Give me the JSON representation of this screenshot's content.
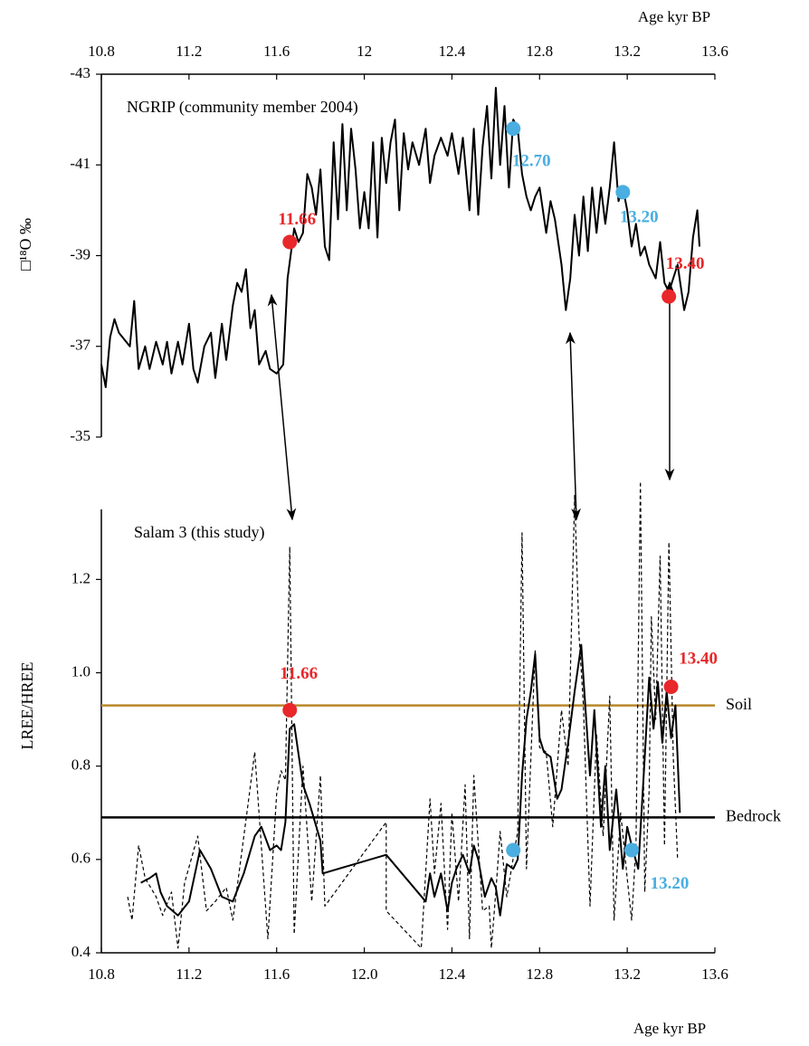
{
  "chart_data": [
    {
      "type": "line",
      "title": "NGRIP (community member 2004)",
      "xlabel": "Age kyr BP",
      "ylabel": "□¹⁸O ‰",
      "xaxis_position": "top",
      "xlim": [
        10.8,
        13.6
      ],
      "xticks": [
        10.8,
        11.2,
        11.6,
        12,
        12.4,
        12.8,
        13.2,
        13.6
      ],
      "ylim": [
        -35,
        -43
      ],
      "yticks": [
        -35,
        -37,
        -39,
        -41,
        -43
      ],
      "series": [
        {
          "color": "#000000",
          "dash": false,
          "x": [
            10.8,
            10.82,
            10.84,
            10.86,
            10.88,
            10.93,
            10.95,
            10.97,
            11.0,
            11.02,
            11.05,
            11.08,
            11.1,
            11.12,
            11.15,
            11.17,
            11.2,
            11.22,
            11.24,
            11.27,
            11.3,
            11.32,
            11.35,
            11.37,
            11.4,
            11.42,
            11.44,
            11.46,
            11.48,
            11.5,
            11.52,
            11.55,
            11.57,
            11.6,
            11.63,
            11.65,
            11.68,
            11.7,
            11.72,
            11.74,
            11.76,
            11.78,
            11.8,
            11.82,
            11.84,
            11.86,
            11.88,
            11.9,
            11.92,
            11.94,
            11.96,
            11.98,
            12.0,
            12.02,
            12.04,
            12.06,
            12.08,
            12.1,
            12.12,
            12.14,
            12.16,
            12.18,
            12.2,
            12.22,
            12.25,
            12.28,
            12.3,
            12.32,
            12.35,
            12.38,
            12.4,
            12.43,
            12.45,
            12.48,
            12.5,
            12.52,
            12.54,
            12.56,
            12.58,
            12.6,
            12.62,
            12.64,
            12.66,
            12.68,
            12.7,
            12.72,
            12.74,
            12.76,
            12.78,
            12.8,
            12.83,
            12.85,
            12.87,
            12.9,
            12.92,
            12.94,
            12.96,
            12.98,
            13.0,
            13.02,
            13.04,
            13.06,
            13.08,
            13.1,
            13.12,
            13.14,
            13.16,
            13.18,
            13.2,
            13.22,
            13.24,
            13.26,
            13.28,
            13.3,
            13.33,
            13.35,
            13.37,
            13.39,
            13.41,
            13.43,
            13.46,
            13.48,
            13.5,
            13.52,
            13.53
          ],
          "values": [
            -36.6,
            -36.1,
            -37.2,
            -37.6,
            -37.3,
            -37.0,
            -38.0,
            -36.5,
            -37.0,
            -36.5,
            -37.1,
            -36.6,
            -37.1,
            -36.4,
            -37.1,
            -36.6,
            -37.5,
            -36.5,
            -36.2,
            -37.0,
            -37.3,
            -36.3,
            -37.5,
            -36.7,
            -37.9,
            -38.4,
            -38.2,
            -38.7,
            -37.4,
            -37.8,
            -36.6,
            -36.9,
            -36.5,
            -36.4,
            -36.6,
            -38.5,
            -39.6,
            -39.3,
            -39.5,
            -40.8,
            -40.5,
            -39.9,
            -40.9,
            -39.2,
            -38.9,
            -41.5,
            -39.8,
            -41.9,
            -40.0,
            -41.8,
            -40.9,
            -39.6,
            -40.4,
            -39.6,
            -41.5,
            -39.4,
            -41.6,
            -40.6,
            -41.5,
            -42.0,
            -40.0,
            -41.7,
            -40.9,
            -41.5,
            -41.0,
            -41.8,
            -40.6,
            -41.2,
            -41.6,
            -41.2,
            -41.7,
            -40.8,
            -41.6,
            -40.0,
            -41.8,
            -39.9,
            -41.4,
            -42.3,
            -40.7,
            -42.7,
            -41.0,
            -42.3,
            -40.5,
            -42.0,
            -41.8,
            -40.8,
            -40.3,
            -40.0,
            -40.3,
            -40.5,
            -39.5,
            -40.2,
            -39.8,
            -38.8,
            -37.8,
            -38.5,
            -39.9,
            -39.0,
            -40.3,
            -39.1,
            -40.5,
            -39.5,
            -40.5,
            -39.7,
            -40.5,
            -41.5,
            -40.2,
            -40.5,
            -40.0,
            -39.2,
            -39.7,
            -39.0,
            -39.2,
            -38.8,
            -38.5,
            -39.3,
            -38.4,
            -38.2,
            -38.5,
            -38.8,
            -37.8,
            -38.2,
            -39.4,
            -40.0,
            -39.2
          ]
        }
      ],
      "annotations": [
        {
          "label": "11.66",
          "x": 11.66,
          "y": -39.3,
          "color": "#e8282a"
        },
        {
          "label": "13.40",
          "x": 13.39,
          "y": -38.1,
          "color": "#e8282a"
        },
        {
          "label": "12.70",
          "x": 12.68,
          "y": -41.8,
          "color": "#4aaee0"
        },
        {
          "label": "13.20",
          "x": 13.18,
          "y": -40.4,
          "color": "#4aaee0"
        }
      ]
    },
    {
      "type": "line",
      "title": "Salam 3 (this study)",
      "xlabel": "Age kyr BP",
      "ylabel": "LREE/HREE",
      "xaxis_position": "bottom",
      "xlim": [
        10.8,
        13.6
      ],
      "xticks": [
        10.8,
        11.2,
        11.6,
        {
          "value": 12,
          "label": "12.0"
        },
        12.4,
        12.8,
        13.2,
        13.6
      ],
      "ylim": [
        0.4,
        1.35
      ],
      "yticks": [
        0.4,
        0.6,
        0.8,
        {
          "value": 1,
          "label": "1.0"
        },
        1.2
      ],
      "series": [
        {
          "color": "#000000",
          "dash": false,
          "x": [
            10.98,
            11.02,
            11.05,
            11.07,
            11.1,
            11.15,
            11.2,
            11.25,
            11.3,
            11.35,
            11.4,
            11.45,
            11.5,
            11.53,
            11.57,
            11.6,
            11.62,
            11.64,
            11.66,
            11.68,
            11.72,
            11.75,
            11.8,
            11.81,
            12.1,
            12.28,
            12.3,
            12.32,
            12.35,
            12.38,
            12.4,
            12.42,
            12.45,
            12.48,
            12.5,
            12.52,
            12.55,
            12.58,
            12.6,
            12.62,
            12.65,
            12.68,
            12.7,
            12.72,
            12.74,
            12.76,
            12.78,
            12.8,
            12.82,
            12.85,
            12.88,
            12.9,
            12.93,
            12.96,
            12.99,
            13.01,
            13.03,
            13.05,
            13.08,
            13.1,
            13.12,
            13.15,
            13.18,
            13.2,
            13.22,
            13.25,
            13.28,
            13.3,
            13.32,
            13.34,
            13.36,
            13.38,
            13.4,
            13.42,
            13.44
          ],
          "values": [
            0.55,
            0.56,
            0.57,
            0.53,
            0.5,
            0.48,
            0.51,
            0.62,
            0.58,
            0.52,
            0.51,
            0.57,
            0.65,
            0.67,
            0.62,
            0.63,
            0.62,
            0.68,
            0.88,
            0.89,
            0.76,
            0.72,
            0.64,
            0.57,
            0.61,
            0.51,
            0.57,
            0.52,
            0.57,
            0.49,
            0.55,
            0.58,
            0.61,
            0.57,
            0.63,
            0.6,
            0.52,
            0.56,
            0.54,
            0.48,
            0.59,
            0.58,
            0.6,
            0.78,
            0.9,
            0.96,
            1.04,
            0.86,
            0.83,
            0.82,
            0.73,
            0.75,
            0.85,
            0.96,
            1.06,
            0.92,
            0.78,
            0.92,
            0.67,
            0.8,
            0.62,
            0.75,
            0.58,
            0.67,
            0.63,
            0.58,
            0.82,
            0.99,
            0.88,
            0.98,
            0.85,
            0.96,
            0.86,
            0.93,
            0.7
          ]
        },
        {
          "color": "#000000",
          "dash": true,
          "x": [
            10.92,
            10.94,
            10.97,
            11.0,
            11.05,
            11.08,
            11.12,
            11.15,
            11.18,
            11.24,
            11.28,
            11.32,
            11.37,
            11.4,
            11.47,
            11.5,
            11.56,
            11.6,
            11.62,
            11.64,
            11.66,
            11.68,
            11.72,
            11.76,
            11.8,
            11.82,
            12.1,
            12.1,
            12.26,
            12.3,
            12.32,
            12.35,
            12.38,
            12.4,
            12.43,
            12.46,
            12.48,
            12.5,
            12.54,
            12.57,
            12.58,
            12.6,
            12.62,
            12.65,
            12.7,
            12.72,
            12.74,
            12.78,
            12.8,
            12.83,
            12.86,
            12.9,
            12.93,
            12.96,
            12.98,
            13.0,
            13.03,
            13.06,
            13.09,
            13.12,
            13.14,
            13.17,
            13.2,
            13.22,
            13.24,
            13.26,
            13.28,
            13.3,
            13.31,
            13.33,
            13.35,
            13.37,
            13.39,
            13.41,
            13.43
          ],
          "values": [
            0.52,
            0.47,
            0.63,
            0.56,
            0.52,
            0.48,
            0.53,
            0.41,
            0.55,
            0.65,
            0.49,
            0.51,
            0.54,
            0.47,
            0.72,
            0.83,
            0.43,
            0.74,
            0.79,
            0.77,
            1.27,
            0.44,
            0.8,
            0.51,
            0.78,
            0.5,
            0.68,
            0.49,
            0.41,
            0.73,
            0.57,
            0.72,
            0.45,
            0.7,
            0.51,
            0.76,
            0.43,
            0.78,
            0.49,
            0.5,
            0.41,
            0.53,
            0.66,
            0.52,
            0.66,
            1.3,
            0.58,
            1.05,
            0.84,
            0.83,
            0.67,
            0.92,
            0.8,
            1.38,
            1.08,
            0.93,
            0.5,
            0.87,
            0.65,
            0.95,
            0.47,
            0.7,
            0.56,
            0.47,
            0.63,
            1.41,
            0.53,
            0.75,
            1.12,
            0.9,
            1.25,
            0.63,
            1.28,
            0.82,
            0.6
          ]
        }
      ],
      "hlines": [
        {
          "value": 0.93,
          "label": "Soil",
          "color": "#b8882a"
        },
        {
          "value": 0.69,
          "label": "Bedrock",
          "color": "#000000"
        }
      ],
      "annotations": [
        {
          "label": "11.66",
          "x": 11.66,
          "y": 0.92,
          "color": "#e8282a"
        },
        {
          "label": "13.40",
          "x": 13.4,
          "y": 0.97,
          "color": "#e8282a"
        },
        {
          "x": 12.68,
          "y": 0.62,
          "color": "#4aaee0"
        },
        {
          "label": "13.20",
          "x": 13.22,
          "y": 0.62,
          "color": "#4aaee0"
        }
      ]
    }
  ]
}
